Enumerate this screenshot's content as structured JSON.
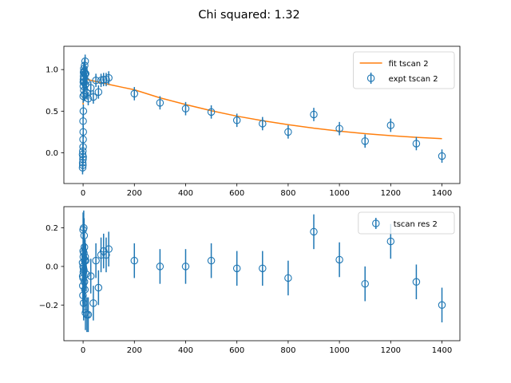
{
  "figure": {
    "suptitle": "Chi squared: 1.32"
  },
  "colors": {
    "fit": "#ff7f0e",
    "expt": "#1f77b4"
  },
  "chart_data": [
    {
      "type": "scatter",
      "name": "top-panel",
      "xlim": [
        -75,
        1470
      ],
      "ylim": [
        -0.37,
        1.28
      ],
      "xticks": [
        0,
        200,
        400,
        600,
        800,
        1000,
        1200,
        1400
      ],
      "yticks": [
        0.0,
        0.5,
        1.0
      ],
      "ytick_labels": [
        "0.0",
        "0.5",
        "1.0"
      ],
      "legend_position": "upper right",
      "series": [
        {
          "name": "fit tscan 2",
          "kind": "line",
          "color": "#ff7f0e",
          "x": [
            0,
            0.3,
            0.6,
            1,
            1.5,
            2,
            3,
            5,
            8,
            10,
            15,
            20,
            30,
            50,
            80,
            100,
            150,
            200,
            300,
            400,
            500,
            600,
            700,
            800,
            900,
            1000,
            1100,
            1200,
            1300,
            1400
          ],
          "y": [
            0.58,
            0.7,
            0.78,
            0.84,
            0.87,
            0.88,
            0.885,
            0.89,
            0.888,
            0.886,
            0.882,
            0.878,
            0.871,
            0.857,
            0.836,
            0.822,
            0.789,
            0.757,
            0.66,
            0.58,
            0.505,
            0.44,
            0.385,
            0.337,
            0.295,
            0.26,
            0.23,
            0.205,
            0.185,
            0.17
          ]
        },
        {
          "name": "expt tscan 2",
          "kind": "errorbar",
          "color": "#1f77b4",
          "points": [
            [
              -2,
              -0.02,
              0.08
            ],
            [
              -1.5,
              -0.12,
              0.08
            ],
            [
              -1,
              -0.15,
              0.08
            ],
            [
              -0.5,
              -0.08,
              0.08
            ],
            [
              0,
              0.07,
              0.08
            ],
            [
              0,
              0.16,
              0.08
            ],
            [
              0,
              0.38,
              0.08
            ],
            [
              0.5,
              0.68,
              0.08
            ],
            [
              1,
              0.8,
              0.08
            ],
            [
              1,
              0.85,
              0.08
            ],
            [
              1.5,
              0.88,
              0.08
            ],
            [
              2,
              0.92,
              0.08
            ],
            [
              2.5,
              0.96,
              0.08
            ],
            [
              3,
              1.01,
              0.08
            ],
            [
              3,
              0.75,
              0.08
            ],
            [
              4,
              0.98,
              0.08
            ],
            [
              5,
              0.9,
              0.08
            ],
            [
              5,
              0.7,
              0.08
            ],
            [
              6,
              1.05,
              0.08
            ],
            [
              7,
              0.95,
              0.08
            ],
            [
              8,
              1.1,
              0.08
            ],
            [
              9,
              0.82,
              0.08
            ],
            [
              10,
              0.95,
              0.08
            ],
            [
              12,
              0.86,
              0.08
            ],
            [
              15,
              0.72,
              0.08
            ],
            [
              20,
              0.65,
              0.08
            ],
            [
              30,
              0.78,
              0.08
            ],
            [
              40,
              0.67,
              0.08
            ],
            [
              50,
              0.87,
              0.08
            ],
            [
              60,
              0.73,
              0.08
            ],
            [
              70,
              0.87,
              0.08
            ],
            [
              80,
              0.88,
              0.08
            ],
            [
              90,
              0.88,
              0.08
            ],
            [
              100,
              0.9,
              0.08
            ],
            [
              200,
              0.71,
              0.08
            ],
            [
              300,
              0.6,
              0.08
            ],
            [
              400,
              0.53,
              0.08
            ],
            [
              500,
              0.49,
              0.08
            ],
            [
              600,
              0.39,
              0.08
            ],
            [
              700,
              0.35,
              0.08
            ],
            [
              800,
              0.25,
              0.08
            ],
            [
              900,
              0.46,
              0.08
            ],
            [
              1000,
              0.29,
              0.08
            ],
            [
              1100,
              0.14,
              0.08
            ],
            [
              1200,
              0.33,
              0.08
            ],
            [
              1300,
              0.11,
              0.08
            ],
            [
              1400,
              -0.04,
              0.08
            ],
            [
              0,
              -0.05,
              0.08
            ],
            [
              0.5,
              0.25,
              0.08
            ],
            [
              1,
              0.5,
              0.08
            ],
            [
              -1,
              0.02,
              0.08
            ],
            [
              -2,
              -0.18,
              0.08
            ],
            [
              2,
              0.97,
              0.08
            ],
            [
              4,
              0.85,
              0.08
            ]
          ]
        }
      ]
    },
    {
      "type": "scatter",
      "name": "bottom-panel",
      "xlim": [
        -75,
        1470
      ],
      "ylim": [
        -0.385,
        0.31
      ],
      "xticks": [
        0,
        200,
        400,
        600,
        800,
        1000,
        1200,
        1400
      ],
      "yticks": [
        -0.2,
        0.0,
        0.2
      ],
      "ytick_labels": [
        "−0.2",
        "0.0",
        "0.2"
      ],
      "legend_position": "upper right",
      "series": [
        {
          "name": "tscan res 2",
          "kind": "errorbar",
          "color": "#1f77b4",
          "points": [
            [
              -2,
              0.02,
              0.09
            ],
            [
              -1.5,
              -0.05,
              0.09
            ],
            [
              -1,
              -0.1,
              0.09
            ],
            [
              -0.5,
              -0.15,
              0.09
            ],
            [
              0,
              0.0,
              0.09
            ],
            [
              0,
              -0.06,
              0.09
            ],
            [
              0,
              0.19,
              0.09
            ],
            [
              0.5,
              0.08,
              0.09
            ],
            [
              1,
              -0.03,
              0.09
            ],
            [
              1,
              0.05,
              0.09
            ],
            [
              1.5,
              -0.01,
              0.09
            ],
            [
              2,
              -0.19,
              0.09
            ],
            [
              2.5,
              0.2,
              0.09
            ],
            [
              3,
              -0.02,
              0.09
            ],
            [
              3,
              0.07,
              0.09
            ],
            [
              4,
              0.16,
              0.09
            ],
            [
              5,
              -0.08,
              0.09
            ],
            [
              5,
              0.1,
              0.09
            ],
            [
              6,
              0.03,
              0.09
            ],
            [
              7,
              -0.12,
              0.09
            ],
            [
              8,
              0.05,
              0.09
            ],
            [
              9,
              -0.24,
              0.09
            ],
            [
              10,
              0.03,
              0.09
            ],
            [
              12,
              -0.04,
              0.09
            ],
            [
              15,
              -0.25,
              0.09
            ],
            [
              20,
              -0.25,
              0.09
            ],
            [
              30,
              -0.05,
              0.09
            ],
            [
              40,
              -0.19,
              0.09
            ],
            [
              50,
              0.03,
              0.09
            ],
            [
              60,
              -0.11,
              0.09
            ],
            [
              70,
              0.06,
              0.09
            ],
            [
              80,
              0.08,
              0.09
            ],
            [
              90,
              0.06,
              0.09
            ],
            [
              100,
              0.09,
              0.09
            ],
            [
              200,
              0.03,
              0.09
            ],
            [
              300,
              0.0,
              0.09
            ],
            [
              400,
              0.0,
              0.09
            ],
            [
              500,
              0.03,
              0.09
            ],
            [
              600,
              -0.01,
              0.09
            ],
            [
              700,
              -0.01,
              0.09
            ],
            [
              800,
              -0.06,
              0.09
            ],
            [
              900,
              0.18,
              0.09
            ],
            [
              1000,
              0.035,
              0.09
            ],
            [
              1100,
              -0.09,
              0.09
            ],
            [
              1200,
              0.13,
              0.09
            ],
            [
              1300,
              -0.08,
              0.09
            ],
            [
              1400,
              -0.2,
              0.09
            ]
          ]
        }
      ]
    }
  ]
}
